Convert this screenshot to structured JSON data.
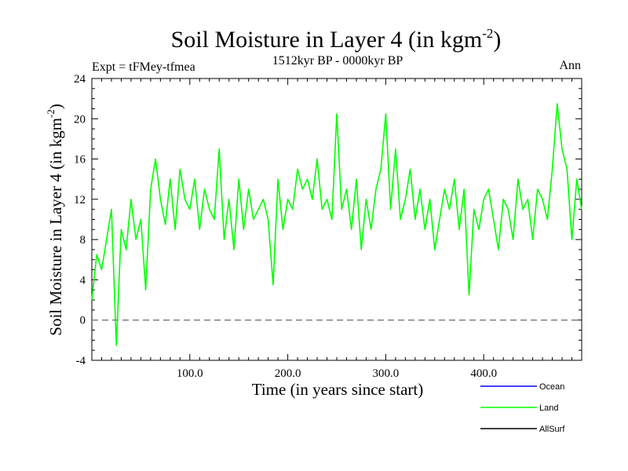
{
  "chart_data": {
    "type": "line",
    "title": "Soil Moisture in Layer 4 (in kgm",
    "title_superscript": "-2",
    "title_suffix": ")",
    "expt_label": "Expt = tFMey-tfmea",
    "period_label": "1512kyr BP - 0000kyr BP",
    "season_label": "Ann",
    "xlabel": "Time (in years since start)",
    "ylabel": "Soil Moisture in Layer 4 (in kgm",
    "ylabel_superscript": "-2",
    "ylabel_suffix": ")",
    "xlim": [
      0,
      500
    ],
    "ylim": [
      -4,
      24
    ],
    "x_ticks": [
      100,
      200,
      300,
      400
    ],
    "x_tick_labels": [
      "100.0",
      "200.0",
      "300.0",
      "400.0"
    ],
    "y_ticks": [
      -4,
      0,
      4,
      8,
      12,
      16,
      20,
      24
    ],
    "y_tick_labels": [
      "-4",
      "0",
      "4",
      "8",
      "12",
      "16",
      "20",
      "24"
    ],
    "reference_line": {
      "y": 0,
      "style": "dashed",
      "color": "#808080"
    },
    "legend": [
      {
        "name": "Ocean",
        "color": "#0000ff"
      },
      {
        "name": "Land",
        "color": "#00ff00"
      },
      {
        "name": "AllSurf",
        "color": "#000000"
      }
    ],
    "series": [
      {
        "name": "Land",
        "color": "#00ff00",
        "x": [
          0,
          5,
          10,
          15,
          20,
          25,
          30,
          35,
          40,
          45,
          50,
          55,
          60,
          65,
          70,
          75,
          80,
          85,
          90,
          95,
          100,
          105,
          110,
          115,
          120,
          125,
          130,
          135,
          140,
          145,
          150,
          155,
          160,
          165,
          170,
          175,
          180,
          185,
          190,
          195,
          200,
          205,
          210,
          215,
          220,
          225,
          230,
          235,
          240,
          245,
          250,
          255,
          260,
          265,
          270,
          275,
          280,
          285,
          290,
          295,
          300,
          305,
          310,
          315,
          320,
          325,
          330,
          335,
          340,
          345,
          350,
          355,
          360,
          365,
          370,
          375,
          380,
          385,
          390,
          395,
          400,
          405,
          410,
          415,
          420,
          425,
          430,
          435,
          440,
          445,
          450,
          455,
          460,
          465,
          470,
          475,
          480,
          485,
          490,
          495,
          500
        ],
        "values": [
          2,
          6.5,
          5,
          8,
          11,
          -2.5,
          9,
          7,
          12,
          8,
          10,
          3,
          13,
          16,
          12,
          9.5,
          14,
          9,
          15,
          12,
          11,
          14,
          9,
          13,
          11,
          10,
          17,
          8,
          12,
          7,
          14,
          9,
          13,
          10,
          11,
          12,
          10,
          3.5,
          14,
          9,
          12,
          11,
          15,
          13,
          14,
          12,
          16,
          11,
          12,
          10,
          20.5,
          11,
          13,
          9,
          14,
          7,
          12,
          9,
          13,
          15,
          20.5,
          11,
          17,
          10,
          12,
          15,
          10,
          13,
          9,
          12,
          7,
          10,
          13,
          11,
          14,
          9,
          13,
          2.5,
          11,
          9,
          12,
          13,
          10,
          7,
          12,
          11,
          8,
          14,
          11,
          12,
          8,
          13,
          12,
          10,
          15,
          21.5,
          17,
          15,
          8,
          14,
          11
        ]
      }
    ]
  }
}
